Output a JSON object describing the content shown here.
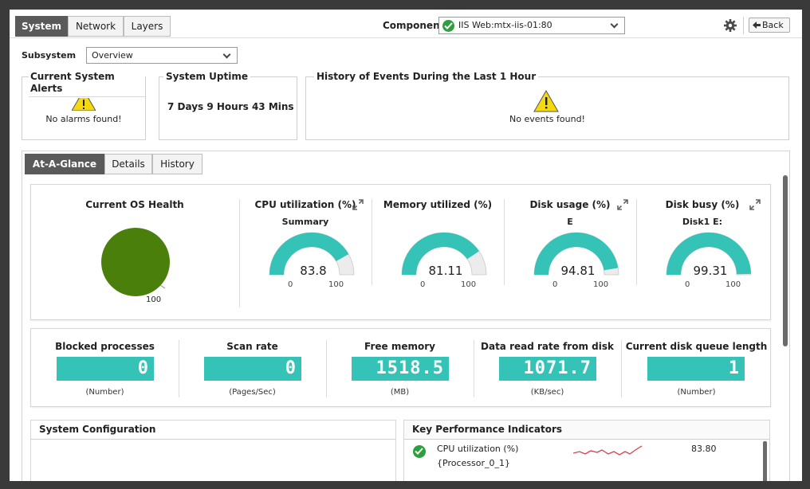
{
  "top_tabs": [
    "System",
    "Network",
    "Layers"
  ],
  "component": {
    "label": "Component",
    "value": "IIS Web:mtx-iis-01:80"
  },
  "back_label": "Back",
  "subsystem": {
    "label": "Subsystem",
    "value": "Overview"
  },
  "alerts_panel": {
    "title": "Current System Alerts",
    "message": "No alarms found!"
  },
  "uptime_panel": {
    "title": "System Uptime",
    "value": "7 Days 9 Hours 43 Mins"
  },
  "events_panel": {
    "title": "History of Events During the Last 1 Hour",
    "message": "No events found!"
  },
  "section_tabs": [
    "At-A-Glance",
    "Details",
    "History"
  ],
  "os_health": {
    "title": "Current OS Health",
    "label": "100",
    "value": 100,
    "color": "#4a7f0c"
  },
  "gauges": [
    {
      "title": "CPU utilization (%)",
      "sub": "Summary",
      "value": "83.8",
      "num": 83.8,
      "min": "0",
      "max": "100",
      "expand": true
    },
    {
      "title": "Memory utilized (%)",
      "sub": "",
      "value": "81.11",
      "num": 81.11,
      "min": "0",
      "max": "100",
      "expand": false
    },
    {
      "title": "Disk usage (%)",
      "sub": "E",
      "value": "94.81",
      "num": 94.81,
      "min": "0",
      "max": "100",
      "expand": true
    },
    {
      "title": "Disk busy (%)",
      "sub": "Disk1 E:",
      "value": "99.31",
      "num": 99.31,
      "min": "0",
      "max": "100",
      "expand": true
    }
  ],
  "metrics": [
    {
      "label": "Blocked processes",
      "value": "0",
      "unit": "(Number)"
    },
    {
      "label": "Scan rate",
      "value": "0",
      "unit": "(Pages/Sec)"
    },
    {
      "label": "Free memory",
      "value": "1518.5",
      "unit": "(MB)"
    },
    {
      "label": "Data read rate from disk",
      "value": "1071.7",
      "unit": "(KB/sec)"
    },
    {
      "label": "Current disk queue length",
      "value": "1",
      "unit": "(Number)"
    }
  ],
  "system_configuration": {
    "title": "System Configuration"
  },
  "kpi": {
    "title": "Key Performance Indicators",
    "rows": [
      {
        "name": "CPU utilization (%)",
        "sub": "{Processor_0_1}",
        "value": "83.80"
      }
    ]
  },
  "colors": {
    "accent": "#35c3b8",
    "ok": "#2e9f3e",
    "warning": "#f5d90f",
    "tab_active": "#5a5a5a",
    "health": "#4a7f0c",
    "sparkline": "#d9434b"
  }
}
